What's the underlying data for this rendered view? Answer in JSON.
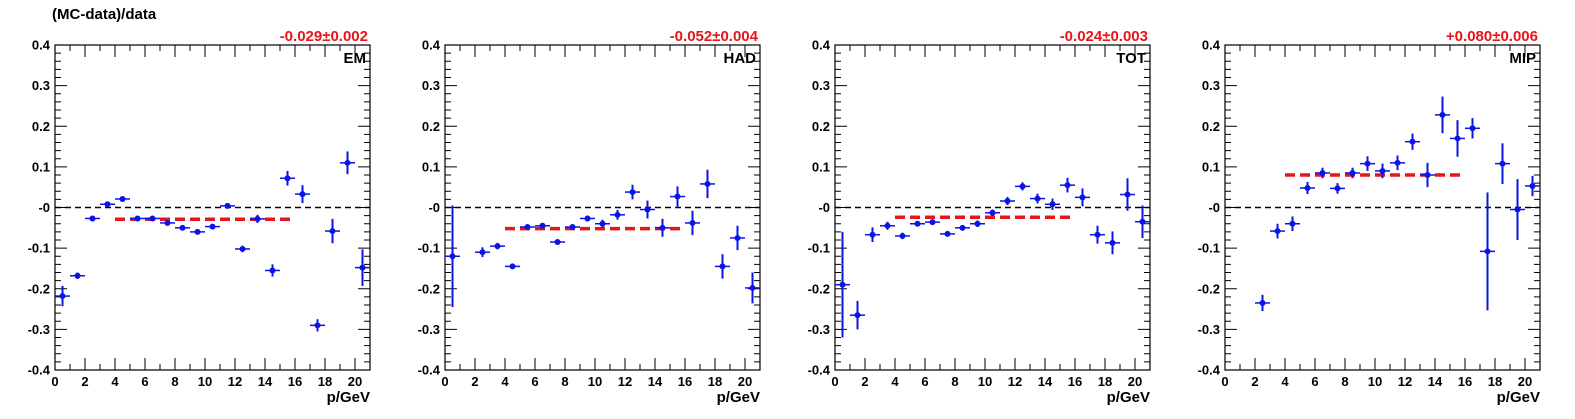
{
  "colors": {
    "points": "#0a14e6",
    "fit": "#e8141a",
    "zero_line": "#000000",
    "axis": "#000000"
  },
  "chart_data": [
    {
      "type": "scatter",
      "ylabel": "(MC-data)/data",
      "xlabel": "p/GeV",
      "label": "EM",
      "fit_text": "-0.029±0.002",
      "fit_value": -0.029,
      "fit_range": [
        4,
        16
      ],
      "xlim": [
        0,
        21
      ],
      "ylim": [
        -0.4,
        0.4
      ],
      "xticks": [
        0,
        2,
        4,
        6,
        8,
        10,
        12,
        14,
        16,
        18,
        20
      ],
      "yticks": [
        -0.4,
        -0.3,
        -0.2,
        -0.1,
        0,
        0.1,
        0.2,
        0.3,
        0.4
      ],
      "ytick_labels": [
        "-0.4",
        "-0.3",
        "-0.2",
        "-0.1",
        "-0",
        "0.1",
        "0.2",
        "0.3",
        "0.4"
      ],
      "points": [
        {
          "x": 0.5,
          "y": -0.218,
          "err": 0.025
        },
        {
          "x": 1.5,
          "y": -0.168,
          "err": 0.008
        },
        {
          "x": 2.5,
          "y": -0.027,
          "err": 0.005
        },
        {
          "x": 3.5,
          "y": 0.008,
          "err": 0.006
        },
        {
          "x": 4.5,
          "y": 0.021,
          "err": 0.005
        },
        {
          "x": 5.5,
          "y": -0.027,
          "err": 0.004
        },
        {
          "x": 6.5,
          "y": -0.027,
          "err": 0.004
        },
        {
          "x": 7.5,
          "y": -0.038,
          "err": 0.004
        },
        {
          "x": 8.5,
          "y": -0.05,
          "err": 0.004
        },
        {
          "x": 9.5,
          "y": -0.06,
          "err": 0.005
        },
        {
          "x": 10.5,
          "y": -0.047,
          "err": 0.006
        },
        {
          "x": 11.5,
          "y": 0.004,
          "err": 0.007
        },
        {
          "x": 12.5,
          "y": -0.102,
          "err": 0.008
        },
        {
          "x": 13.5,
          "y": -0.028,
          "err": 0.01
        },
        {
          "x": 14.5,
          "y": -0.155,
          "err": 0.015
        },
        {
          "x": 15.5,
          "y": 0.072,
          "err": 0.018
        },
        {
          "x": 16.5,
          "y": 0.033,
          "err": 0.022
        },
        {
          "x": 17.5,
          "y": -0.29,
          "err": 0.015
        },
        {
          "x": 18.5,
          "y": -0.058,
          "err": 0.03
        },
        {
          "x": 19.5,
          "y": 0.11,
          "err": 0.028
        },
        {
          "x": 20.5,
          "y": -0.148,
          "err": 0.045
        }
      ]
    },
    {
      "type": "scatter",
      "xlabel": "p/GeV",
      "label": "HAD",
      "fit_text": "-0.052±0.004",
      "fit_value": -0.052,
      "fit_range": [
        4,
        16
      ],
      "xlim": [
        0,
        21
      ],
      "ylim": [
        -0.4,
        0.4
      ],
      "xticks": [
        0,
        2,
        4,
        6,
        8,
        10,
        12,
        14,
        16,
        18,
        20
      ],
      "yticks": [
        -0.4,
        -0.3,
        -0.2,
        -0.1,
        0,
        0.1,
        0.2,
        0.3,
        0.4
      ],
      "ytick_labels": [
        "-0.4",
        "-0.3",
        "-0.2",
        "-0.1",
        "-0",
        "0.1",
        "0.2",
        "0.3",
        "0.4"
      ],
      "points": [
        {
          "x": 0.5,
          "y": -0.12,
          "err": 0.125
        },
        {
          "x": 2.5,
          "y": -0.11,
          "err": 0.012
        },
        {
          "x": 3.5,
          "y": -0.095,
          "err": 0.008
        },
        {
          "x": 4.5,
          "y": -0.145,
          "err": 0.006
        },
        {
          "x": 5.5,
          "y": -0.048,
          "err": 0.005
        },
        {
          "x": 6.5,
          "y": -0.045,
          "err": 0.005
        },
        {
          "x": 7.5,
          "y": -0.085,
          "err": 0.006
        },
        {
          "x": 8.5,
          "y": -0.048,
          "err": 0.006
        },
        {
          "x": 9.5,
          "y": -0.027,
          "err": 0.007
        },
        {
          "x": 10.5,
          "y": -0.04,
          "err": 0.01
        },
        {
          "x": 11.5,
          "y": -0.018,
          "err": 0.012
        },
        {
          "x": 12.5,
          "y": 0.038,
          "err": 0.018
        },
        {
          "x": 13.5,
          "y": -0.005,
          "err": 0.022
        },
        {
          "x": 14.5,
          "y": -0.05,
          "err": 0.022
        },
        {
          "x": 15.5,
          "y": 0.027,
          "err": 0.025
        },
        {
          "x": 16.5,
          "y": -0.038,
          "err": 0.03
        },
        {
          "x": 17.5,
          "y": 0.058,
          "err": 0.035
        },
        {
          "x": 18.5,
          "y": -0.145,
          "err": 0.03
        },
        {
          "x": 19.5,
          "y": -0.075,
          "err": 0.03
        },
        {
          "x": 20.5,
          "y": -0.198,
          "err": 0.038
        }
      ]
    },
    {
      "type": "scatter",
      "xlabel": "p/GeV",
      "label": "TOT",
      "fit_text": "-0.024±0.003",
      "fit_value": -0.024,
      "fit_range": [
        4,
        16
      ],
      "xlim": [
        0,
        21
      ],
      "ylim": [
        -0.4,
        0.4
      ],
      "xticks": [
        0,
        2,
        4,
        6,
        8,
        10,
        12,
        14,
        16,
        18,
        20
      ],
      "yticks": [
        -0.4,
        -0.3,
        -0.2,
        -0.1,
        0,
        0.1,
        0.2,
        0.3,
        0.4
      ],
      "ytick_labels": [
        "-0.4",
        "-0.3",
        "-0.2",
        "-0.1",
        "-0",
        "0.1",
        "0.2",
        "0.3",
        "0.4"
      ],
      "points": [
        {
          "x": 0.5,
          "y": -0.19,
          "err": 0.13
        },
        {
          "x": 1.5,
          "y": -0.265,
          "err": 0.035
        },
        {
          "x": 2.5,
          "y": -0.067,
          "err": 0.018
        },
        {
          "x": 3.5,
          "y": -0.045,
          "err": 0.01
        },
        {
          "x": 4.5,
          "y": -0.07,
          "err": 0.008
        },
        {
          "x": 5.5,
          "y": -0.04,
          "err": 0.006
        },
        {
          "x": 6.5,
          "y": -0.036,
          "err": 0.006
        },
        {
          "x": 7.5,
          "y": -0.065,
          "err": 0.006
        },
        {
          "x": 8.5,
          "y": -0.05,
          "err": 0.007
        },
        {
          "x": 9.5,
          "y": -0.04,
          "err": 0.008
        },
        {
          "x": 10.5,
          "y": -0.013,
          "err": 0.008
        },
        {
          "x": 11.5,
          "y": 0.016,
          "err": 0.01
        },
        {
          "x": 12.5,
          "y": 0.052,
          "err": 0.01
        },
        {
          "x": 13.5,
          "y": 0.022,
          "err": 0.012
        },
        {
          "x": 14.5,
          "y": 0.008,
          "err": 0.014
        },
        {
          "x": 15.5,
          "y": 0.055,
          "err": 0.018
        },
        {
          "x": 16.5,
          "y": 0.025,
          "err": 0.022
        },
        {
          "x": 17.5,
          "y": -0.067,
          "err": 0.022
        },
        {
          "x": 18.5,
          "y": -0.087,
          "err": 0.028
        },
        {
          "x": 19.5,
          "y": 0.032,
          "err": 0.04
        },
        {
          "x": 20.5,
          "y": -0.035,
          "err": 0.04
        }
      ]
    },
    {
      "type": "scatter",
      "xlabel": "p/GeV",
      "label": "MIP",
      "fit_text": "+0.080±0.006",
      "fit_value": 0.08,
      "fit_range": [
        4,
        16
      ],
      "xlim": [
        0,
        21
      ],
      "ylim": [
        -0.4,
        0.4
      ],
      "xticks": [
        0,
        2,
        4,
        6,
        8,
        10,
        12,
        14,
        16,
        18,
        20
      ],
      "yticks": [
        -0.4,
        -0.3,
        -0.2,
        -0.1,
        0,
        0.1,
        0.2,
        0.3,
        0.4
      ],
      "ytick_labels": [
        "-0.4",
        "-0.3",
        "-0.2",
        "-0.1",
        "-0",
        "0.1",
        "0.2",
        "0.3",
        "0.4"
      ],
      "points": [
        {
          "x": 2.5,
          "y": -0.235,
          "err": 0.02
        },
        {
          "x": 3.5,
          "y": -0.058,
          "err": 0.018
        },
        {
          "x": 4.5,
          "y": -0.04,
          "err": 0.018
        },
        {
          "x": 5.5,
          "y": 0.048,
          "err": 0.015
        },
        {
          "x": 6.5,
          "y": 0.085,
          "err": 0.013
        },
        {
          "x": 7.5,
          "y": 0.047,
          "err": 0.013
        },
        {
          "x": 8.5,
          "y": 0.085,
          "err": 0.013
        },
        {
          "x": 9.5,
          "y": 0.108,
          "err": 0.018
        },
        {
          "x": 10.5,
          "y": 0.09,
          "err": 0.018
        },
        {
          "x": 11.5,
          "y": 0.11,
          "err": 0.018
        },
        {
          "x": 12.5,
          "y": 0.162,
          "err": 0.02
        },
        {
          "x": 13.5,
          "y": 0.08,
          "err": 0.03
        },
        {
          "x": 14.5,
          "y": 0.228,
          "err": 0.045
        },
        {
          "x": 15.5,
          "y": 0.17,
          "err": 0.045
        },
        {
          "x": 16.5,
          "y": 0.195,
          "err": 0.025
        },
        {
          "x": 17.5,
          "y": -0.108,
          "err": 0.145
        },
        {
          "x": 18.5,
          "y": 0.108,
          "err": 0.05
        },
        {
          "x": 19.5,
          "y": -0.005,
          "err": 0.075
        },
        {
          "x": 20.5,
          "y": 0.053,
          "err": 0.025
        }
      ]
    }
  ]
}
